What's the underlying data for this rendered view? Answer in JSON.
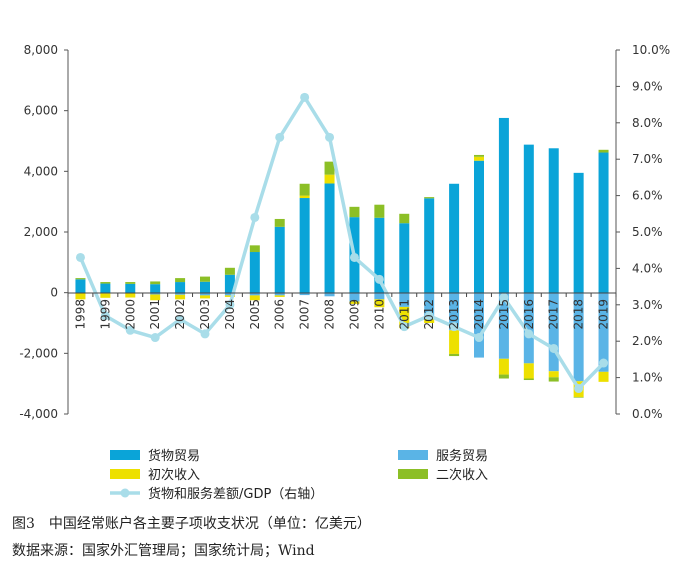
{
  "chart_data": {
    "type": "bar",
    "stacked": true,
    "title": "",
    "categories": [
      "1998",
      "1999",
      "2000",
      "2001",
      "2002",
      "2003",
      "2004",
      "2005",
      "2006",
      "2007",
      "2008",
      "2009",
      "2010",
      "2011",
      "2012",
      "2013",
      "2014",
      "2015",
      "2016",
      "2017",
      "2018",
      "2019"
    ],
    "left_axis": {
      "ylim": [
        -4000,
        8000
      ],
      "ticks": [
        "-4,000",
        "-2,000",
        "0",
        "2,000",
        "4,000",
        "6,000",
        "8,000"
      ],
      "tick_values": [
        -4000,
        -2000,
        0,
        2000,
        4000,
        6000,
        8000
      ]
    },
    "right_axis": {
      "ylim": [
        0,
        10
      ],
      "ticks": [
        "0.0%",
        "1.0%",
        "2.0%",
        "3.0%",
        "4.0%",
        "5.0%",
        "6.0%",
        "7.0%",
        "8.0%",
        "9.0%",
        "10.0%"
      ],
      "tick_values": [
        0,
        1,
        2,
        3,
        4,
        5,
        6,
        7,
        8,
        9,
        10
      ]
    },
    "series": [
      {
        "name": "货物贸易",
        "kind": "bar",
        "color": "#0aa4d8",
        "values": [
          440,
          300,
          290,
          280,
          350,
          360,
          590,
          1340,
          2170,
          3120,
          3600,
          2490,
          2470,
          2290,
          3110,
          3590,
          4350,
          5760,
          4880,
          4760,
          3950,
          4620
        ]
      },
      {
        "name": "服务贸易",
        "kind": "bar",
        "color": "#5ab4e6",
        "values": [
          -20,
          -30,
          -10,
          -60,
          -70,
          -90,
          -90,
          -90,
          -90,
          -80,
          -120,
          -290,
          -220,
          -470,
          -800,
          -1240,
          -2140,
          -2180,
          -2330,
          -2590,
          -2920,
          -2610
        ]
      },
      {
        "name": "初次收入",
        "kind": "bar",
        "color": "#ede000",
        "values": [
          -200,
          -140,
          -150,
          -190,
          -150,
          -100,
          -50,
          -160,
          -50,
          80,
          290,
          -80,
          -260,
          -700,
          -200,
          -780,
          130,
          -520,
          -500,
          -200,
          -520,
          -330
        ]
      },
      {
        "name": "二次收入",
        "kind": "bar",
        "color": "#8cbf26",
        "values": [
          40,
          50,
          60,
          90,
          130,
          170,
          230,
          220,
          260,
          390,
          430,
          340,
          430,
          310,
          40,
          -70,
          60,
          -130,
          -50,
          -140,
          -20,
          90
        ]
      },
      {
        "name": "货物和服务差额/GDP（右轴）",
        "kind": "line",
        "axis": "right",
        "color": "#a9dde9",
        "values": [
          4.3,
          2.7,
          2.3,
          2.1,
          2.6,
          2.2,
          3.0,
          5.4,
          7.6,
          8.7,
          7.6,
          4.3,
          3.7,
          2.4,
          2.7,
          2.4,
          2.1,
          3.2,
          2.2,
          1.8,
          0.7,
          1.4
        ]
      }
    ]
  },
  "figure": {
    "caption": "图3　中国经常账户各主要子项收支状况（单位：亿美元）",
    "source": "数据来源：国家外汇管理局；国家统计局；Wind"
  }
}
